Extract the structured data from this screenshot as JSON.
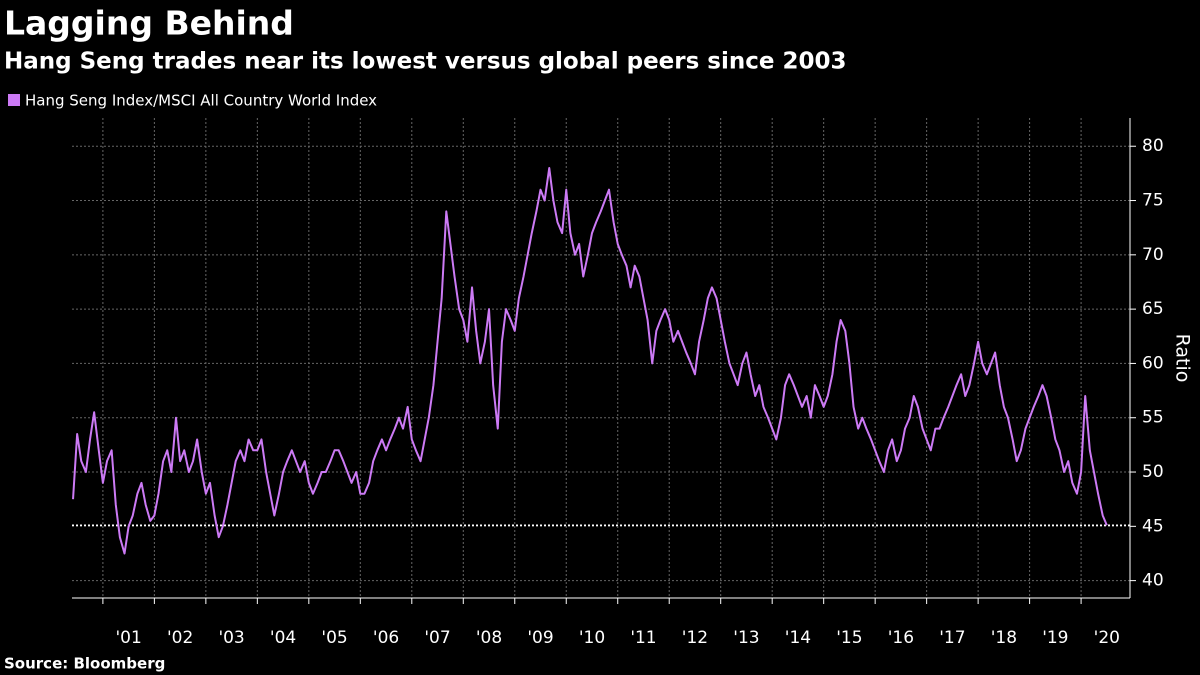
{
  "chart_data": {
    "type": "line",
    "title": "Lagging Behind",
    "subtitle": "Hang Seng trades near its lowest versus global peers since 2003",
    "y_axis_label": "Ratio",
    "source": "Source: Bloomberg",
    "xlim": [
      2000.4,
      2020.95
    ],
    "ylim": [
      38.4,
      82.6
    ],
    "yticks": [
      40,
      45,
      50,
      55,
      60,
      65,
      70,
      75,
      80
    ],
    "xticks": [
      {
        "value": 2001.5,
        "label": "'01"
      },
      {
        "value": 2002.5,
        "label": "'02"
      },
      {
        "value": 2003.5,
        "label": "'03"
      },
      {
        "value": 2004.5,
        "label": "'04"
      },
      {
        "value": 2005.5,
        "label": "'05"
      },
      {
        "value": 2006.5,
        "label": "'06"
      },
      {
        "value": 2007.5,
        "label": "'07"
      },
      {
        "value": 2008.5,
        "label": "'08"
      },
      {
        "value": 2009.5,
        "label": "'09"
      },
      {
        "value": 2010.5,
        "label": "'10"
      },
      {
        "value": 2011.5,
        "label": "'11"
      },
      {
        "value": 2012.5,
        "label": "'12"
      },
      {
        "value": 2013.5,
        "label": "'13"
      },
      {
        "value": 2014.5,
        "label": "'14"
      },
      {
        "value": 2015.5,
        "label": "'15"
      },
      {
        "value": 2016.5,
        "label": "'16"
      },
      {
        "value": 2017.5,
        "label": "'17"
      },
      {
        "value": 2018.5,
        "label": "'18"
      },
      {
        "value": 2019.5,
        "label": "'19"
      },
      {
        "value": 2020.5,
        "label": "'20"
      }
    ],
    "xgrid": [
      2001,
      2002,
      2003,
      2004,
      2005,
      2006,
      2007,
      2008,
      2009,
      2010,
      2011,
      2012,
      2013,
      2014,
      2015,
      2016,
      2017,
      2018,
      2019,
      2020
    ],
    "grid": true,
    "reference_line": {
      "value": 45.1,
      "color": "#ffffff"
    },
    "x": [
      2000.42,
      2000.5,
      2000.58,
      2000.67,
      2000.75,
      2000.83,
      2000.92,
      2001,
      2001.08,
      2001.17,
      2001.25,
      2001.33,
      2001.42,
      2001.5,
      2001.58,
      2001.67,
      2001.75,
      2001.83,
      2001.92,
      2002,
      2002.08,
      2002.17,
      2002.25,
      2002.33,
      2002.42,
      2002.5,
      2002.58,
      2002.67,
      2002.75,
      2002.83,
      2002.92,
      2003,
      2003.08,
      2003.17,
      2003.25,
      2003.33,
      2003.42,
      2003.5,
      2003.58,
      2003.67,
      2003.75,
      2003.83,
      2003.92,
      2004,
      2004.08,
      2004.17,
      2004.25,
      2004.33,
      2004.42,
      2004.5,
      2004.58,
      2004.67,
      2004.75,
      2004.83,
      2004.92,
      2005,
      2005.08,
      2005.17,
      2005.25,
      2005.33,
      2005.42,
      2005.5,
      2005.58,
      2005.67,
      2005.75,
      2005.83,
      2005.92,
      2006,
      2006.08,
      2006.17,
      2006.25,
      2006.33,
      2006.42,
      2006.5,
      2006.58,
      2006.67,
      2006.75,
      2006.83,
      2006.92,
      2007,
      2007.08,
      2007.17,
      2007.25,
      2007.33,
      2007.42,
      2007.5,
      2007.58,
      2007.67,
      2007.75,
      2007.83,
      2007.92,
      2008,
      2008.08,
      2008.17,
      2008.25,
      2008.33,
      2008.42,
      2008.5,
      2008.58,
      2008.67,
      2008.75,
      2008.83,
      2008.92,
      2009,
      2009.08,
      2009.17,
      2009.25,
      2009.33,
      2009.42,
      2009.5,
      2009.58,
      2009.67,
      2009.75,
      2009.83,
      2009.92,
      2010,
      2010.08,
      2010.17,
      2010.25,
      2010.33,
      2010.42,
      2010.5,
      2010.58,
      2010.67,
      2010.75,
      2010.83,
      2010.92,
      2011,
      2011.08,
      2011.17,
      2011.25,
      2011.33,
      2011.42,
      2011.5,
      2011.58,
      2011.67,
      2011.75,
      2011.83,
      2011.92,
      2012,
      2012.08,
      2012.17,
      2012.25,
      2012.33,
      2012.42,
      2012.5,
      2012.58,
      2012.67,
      2012.75,
      2012.83,
      2012.92,
      2013,
      2013.08,
      2013.17,
      2013.25,
      2013.33,
      2013.42,
      2013.5,
      2013.58,
      2013.67,
      2013.75,
      2013.83,
      2013.92,
      2014,
      2014.08,
      2014.17,
      2014.25,
      2014.33,
      2014.42,
      2014.5,
      2014.58,
      2014.67,
      2014.75,
      2014.83,
      2014.92,
      2015,
      2015.08,
      2015.17,
      2015.25,
      2015.33,
      2015.42,
      2015.5,
      2015.58,
      2015.67,
      2015.75,
      2015.83,
      2015.92,
      2016,
      2016.08,
      2016.17,
      2016.25,
      2016.33,
      2016.42,
      2016.5,
      2016.58,
      2016.67,
      2016.75,
      2016.83,
      2016.92,
      2017,
      2017.08,
      2017.17,
      2017.25,
      2017.33,
      2017.42,
      2017.5,
      2017.58,
      2017.67,
      2017.75,
      2017.83,
      2017.92,
      2018,
      2018.08,
      2018.17,
      2018.25,
      2018.33,
      2018.42,
      2018.5,
      2018.58,
      2018.67,
      2018.75,
      2018.83,
      2018.92,
      2019,
      2019.08,
      2019.17,
      2019.25,
      2019.33,
      2019.42,
      2019.5,
      2019.58,
      2019.67,
      2019.75,
      2019.83,
      2019.92,
      2020,
      2020.08,
      2020.17,
      2020.25,
      2020.33,
      2020.42,
      2020.5
    ],
    "series": [
      {
        "name": "Hang Seng Index/MSCI All Country World Index",
        "color": "#cc7af5",
        "values": [
          47.5,
          53.5,
          51,
          50,
          53,
          55.5,
          52,
          49,
          51,
          52,
          47,
          44,
          42.5,
          45,
          46,
          48,
          49,
          47,
          45.5,
          46,
          48,
          51,
          52,
          50,
          55,
          51,
          52,
          50,
          51,
          53,
          50,
          48,
          49,
          46,
          44,
          45,
          47,
          49,
          51,
          52,
          51,
          53,
          52,
          52,
          53,
          50,
          48,
          46,
          48,
          50,
          51,
          52,
          51,
          50,
          51,
          49,
          48,
          49,
          50,
          50,
          51,
          52,
          52,
          51,
          50,
          49,
          50,
          48,
          48,
          49,
          51,
          52,
          53,
          52,
          53,
          54,
          55,
          54,
          56,
          53,
          52,
          51,
          53,
          55,
          58,
          62,
          66,
          74,
          71,
          68,
          65,
          64,
          62,
          67,
          63,
          60,
          62,
          65,
          58,
          54,
          62,
          65,
          64,
          63,
          66,
          68,
          70,
          72,
          74,
          76,
          75,
          78,
          75,
          73,
          72,
          76,
          72,
          70,
          71,
          68,
          70,
          72,
          73,
          74,
          75,
          76,
          73,
          71,
          70,
          69,
          67,
          69,
          68,
          66,
          64,
          60,
          63,
          64,
          65,
          64,
          62,
          63,
          62,
          61,
          60,
          59,
          62,
          64,
          66,
          67,
          66,
          64,
          62,
          60,
          59,
          58,
          60,
          61,
          59,
          57,
          58,
          56,
          55,
          54,
          53,
          55,
          58,
          59,
          58,
          57,
          56,
          57,
          55,
          58,
          57,
          56,
          57,
          59,
          62,
          64,
          63,
          60,
          56,
          54,
          55,
          54,
          53,
          52,
          51,
          50,
          52,
          53,
          51,
          52,
          54,
          55,
          57,
          56,
          54,
          53,
          52,
          54,
          54,
          55,
          56,
          57,
          58,
          59,
          57,
          58,
          60,
          62,
          60,
          59,
          60,
          61,
          58,
          56,
          55,
          53,
          51,
          52,
          54,
          55,
          56,
          57,
          58,
          57,
          55,
          53,
          52,
          50,
          51,
          49,
          48,
          50,
          57,
          52,
          50,
          48,
          46,
          45.1
        ]
      }
    ]
  }
}
